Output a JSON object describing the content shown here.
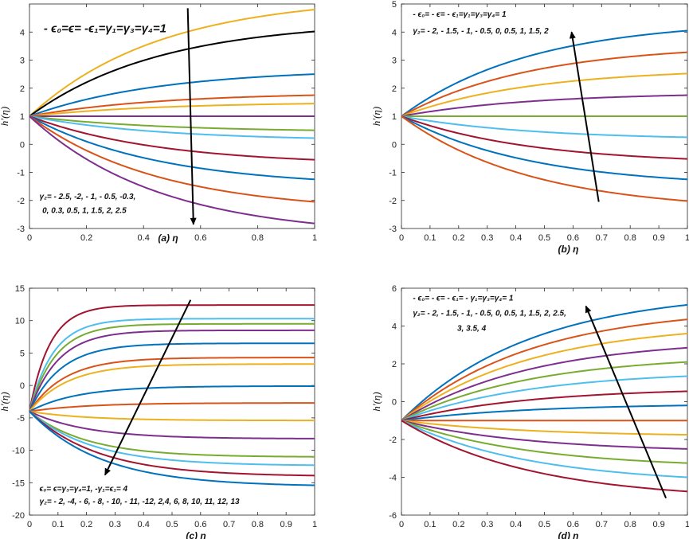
{
  "colors": {
    "blue": "#0072BD",
    "orange": "#D95319",
    "yellow": "#EDB120",
    "purple": "#7E2F8E",
    "green": "#77AC30",
    "cyan": "#4DBEEE",
    "red": "#A2142F",
    "black": "#000000"
  },
  "chart_data": [
    {
      "id": "a",
      "type": "line",
      "xlabel": "(a) η",
      "ylabel": "h'(η)",
      "xlim": [
        0,
        1
      ],
      "ylim": [
        -3,
        5
      ],
      "xticks": [
        0,
        0.2,
        0.4,
        0.6,
        0.8,
        1
      ],
      "xtick_labels": [
        "0",
        "0.2",
        "0.4",
        "0.6",
        "0.8",
        "1"
      ],
      "yticks": [
        -3,
        -2,
        -1,
        0,
        1,
        2,
        3,
        4
      ],
      "ytick_labels": [
        "-3",
        "-2",
        "-1",
        "0",
        "1",
        "2",
        "3",
        "4"
      ],
      "start_value": 1,
      "curve_shape": "k",
      "curve_k": 2.2,
      "annotations": [
        {
          "text": "- ϵ₀=ϵ= -ϵ₁=γ₁=γ₃=γ₄=1",
          "data_pos": [
            0.05,
            4.0
          ],
          "size": 15
        },
        {
          "text": "γ₂= - 2.5, -2, - 1, - 0.5, -0.3,",
          "data_pos": [
            0.035,
            -1.95
          ],
          "size": 10
        },
        {
          "text": "0, 0.3, 0.5, 1, 1.5, 2, 2.5",
          "data_pos": [
            0.045,
            -2.45
          ],
          "size": 10
        }
      ],
      "arrow": {
        "from": [
          0.555,
          4.85
        ],
        "to": [
          0.575,
          -2.85
        ]
      },
      "series": [
        {
          "color": "yellow",
          "end": 4.8
        },
        {
          "color": "black",
          "end": 4.02
        },
        {
          "color": "blue",
          "end": 2.5
        },
        {
          "color": "orange",
          "end": 1.75
        },
        {
          "color": "yellow",
          "end": 1.45
        },
        {
          "color": "purple",
          "end": 1.0
        },
        {
          "color": "green",
          "end": 0.5
        },
        {
          "color": "cyan",
          "end": 0.22
        },
        {
          "color": "red",
          "end": -0.55
        },
        {
          "color": "blue",
          "end": -1.25
        },
        {
          "color": "orange",
          "end": -2.05
        },
        {
          "color": "purple",
          "end": -2.82
        }
      ]
    },
    {
      "id": "b",
      "type": "line",
      "xlabel": "(b) η",
      "ylabel": "h'(η)",
      "xlim": [
        0,
        1
      ],
      "ylim": [
        -3,
        5
      ],
      "xticks": [
        0,
        0.1,
        0.2,
        0.3,
        0.4,
        0.5,
        0.6,
        0.7,
        0.8,
        0.9,
        1
      ],
      "xtick_labels": [
        "0",
        "0.1",
        "0.2",
        "0.3",
        "0.4",
        "0.5",
        "0.6",
        "0.7",
        "0.8",
        "0.9",
        "1"
      ],
      "yticks": [
        -3,
        -2,
        -1,
        0,
        1,
        2,
        3,
        4,
        5
      ],
      "ytick_labels": [
        "-3",
        "-2",
        "-1",
        "0",
        "1",
        "2",
        "3",
        "4",
        "5"
      ],
      "start_value": 1,
      "curve_shape": "k",
      "curve_k": 2.2,
      "annotations": [
        {
          "text": "- ϵ₀= - ϵ= - ϵ₁=γ₁=γ₃=γ₄= 1",
          "data_pos": [
            0.04,
            4.55
          ],
          "size": 10
        },
        {
          "text": "γ₂= - 2, - 1.5, - 1, - 0.5, 0, 0.5, 1, 1.5, 2",
          "data_pos": [
            0.04,
            3.95
          ],
          "size": 10
        }
      ],
      "arrow": {
        "from": [
          0.69,
          -2.05
        ],
        "to": [
          0.595,
          4.0
        ]
      },
      "series": [
        {
          "color": "blue",
          "end": 4.05
        },
        {
          "color": "orange",
          "end": 3.28
        },
        {
          "color": "yellow",
          "end": 2.52
        },
        {
          "color": "purple",
          "end": 1.75
        },
        {
          "color": "green",
          "end": 1.0
        },
        {
          "color": "cyan",
          "end": 0.25
        },
        {
          "color": "red",
          "end": -0.52
        },
        {
          "color": "blue",
          "end": -1.25
        },
        {
          "color": "orange",
          "end": -2.02
        }
      ]
    },
    {
      "id": "c",
      "type": "line",
      "xlabel": "(c) η",
      "ylabel": "h'(η)",
      "xlim": [
        0,
        1
      ],
      "ylim": [
        -20,
        15
      ],
      "xticks": [
        0,
        0.1,
        0.2,
        0.3,
        0.4,
        0.5,
        0.6,
        0.7,
        0.8,
        0.9,
        1
      ],
      "xtick_labels": [
        "0",
        "0.1",
        "0.2",
        "0.3",
        "0.4",
        "0.5",
        "0.6",
        "0.7",
        "0.8",
        "0.9",
        "1"
      ],
      "yticks": [
        -20,
        -15,
        -10,
        -5,
        0,
        5,
        10,
        15
      ],
      "ytick_labels": [
        "-20",
        "-15",
        "-10",
        "-5",
        "0",
        "5",
        "10",
        "15"
      ],
      "start_value": -4,
      "curve_shape": "sat",
      "annotations": [
        {
          "text": "ϵ₀= ϵ=γ₃=γ₄=1, -γ₁=ϵ₁= 4",
          "data_pos": [
            0.035,
            -16.3
          ],
          "size": 10
        },
        {
          "text": "γ₂= - 2, -4, - 6, - 8, - 10, - 11, -12,    2,4, 6, 8, 10, 11, 12, 13",
          "data_pos": [
            0.035,
            -18.3
          ],
          "size": 10
        }
      ],
      "arrow": {
        "from": [
          0.565,
          13.2
        ],
        "to": [
          0.265,
          -13.8
        ]
      },
      "series": [
        {
          "color": "red",
          "end": 12.4,
          "rate": 14
        },
        {
          "color": "cyan",
          "end": 10.3,
          "rate": 12
        },
        {
          "color": "green",
          "end": 9.5,
          "rate": 11
        },
        {
          "color": "purple",
          "end": 8.5,
          "rate": 10
        },
        {
          "color": "blue",
          "end": 6.5,
          "rate": 9
        },
        {
          "color": "orange",
          "end": 4.3,
          "rate": 8
        },
        {
          "color": "yellow",
          "end": 3.3,
          "rate": 7.5
        },
        {
          "color": "blue",
          "end": -0.1,
          "rate": 6
        },
        {
          "color": "orange",
          "end": -2.7,
          "rate": 5
        },
        {
          "color": "yellow",
          "end": -5.4,
          "rate": 5
        },
        {
          "color": "purple",
          "end": -8.2,
          "rate": 5
        },
        {
          "color": "green",
          "end": -11.0,
          "rate": 5
        },
        {
          "color": "cyan",
          "end": -12.3,
          "rate": 4.5
        },
        {
          "color": "red",
          "end": -13.9,
          "rate": 4.2
        },
        {
          "color": "blue",
          "end": -15.4,
          "rate": 4
        }
      ]
    },
    {
      "id": "d",
      "type": "line",
      "xlabel": "(d) η",
      "ylabel": "h'(η)",
      "xlim": [
        0,
        1
      ],
      "ylim": [
        -6,
        6
      ],
      "xticks": [
        0,
        0.1,
        0.2,
        0.3,
        0.4,
        0.5,
        0.6,
        0.7,
        0.8,
        0.9,
        1
      ],
      "xtick_labels": [
        "0",
        "0.1",
        "0.2",
        "0.3",
        "0.4",
        "0.5",
        "0.6",
        "0.7",
        "0.8",
        "0.9",
        "1"
      ],
      "yticks": [
        -6,
        -4,
        -2,
        0,
        2,
        4,
        6
      ],
      "ytick_labels": [
        "-6",
        "-4",
        "-2",
        "0",
        "2",
        "4",
        "6"
      ],
      "start_value": -1,
      "curve_shape": "k",
      "curve_k": 2.2,
      "annotations": [
        {
          "text": "- ϵ₀= - ϵ= - ϵ₁= - γ₁=γ₃=γ₄= 1",
          "data_pos": [
            0.04,
            5.35
          ],
          "size": 10
        },
        {
          "text": "γ₂=  - 2, - 1.5, - 1, - 0.5, 0, 0.5, 1, 1.5, 2, 2.5,",
          "data_pos": [
            0.04,
            4.55
          ],
          "size": 10
        },
        {
          "text": "3, 3.5, 4",
          "data_pos": [
            0.195,
            3.75
          ],
          "size": 10
        }
      ],
      "arrow": {
        "from": [
          0.925,
          -5.1
        ],
        "to": [
          0.645,
          5.05
        ]
      },
      "series": [
        {
          "color": "blue",
          "end": 5.12
        },
        {
          "color": "orange",
          "end": 4.35
        },
        {
          "color": "yellow",
          "end": 3.6
        },
        {
          "color": "purple",
          "end": 2.85
        },
        {
          "color": "green",
          "end": 2.1
        },
        {
          "color": "cyan",
          "end": 1.35
        },
        {
          "color": "red",
          "end": 0.55
        },
        {
          "color": "blue",
          "end": -0.2
        },
        {
          "color": "orange",
          "end": -1.0
        },
        {
          "color": "yellow",
          "end": -1.75
        },
        {
          "color": "purple",
          "end": -2.5
        },
        {
          "color": "green",
          "end": -3.25
        },
        {
          "color": "cyan",
          "end": -4.0
        },
        {
          "color": "red",
          "end": -4.75
        }
      ]
    }
  ]
}
